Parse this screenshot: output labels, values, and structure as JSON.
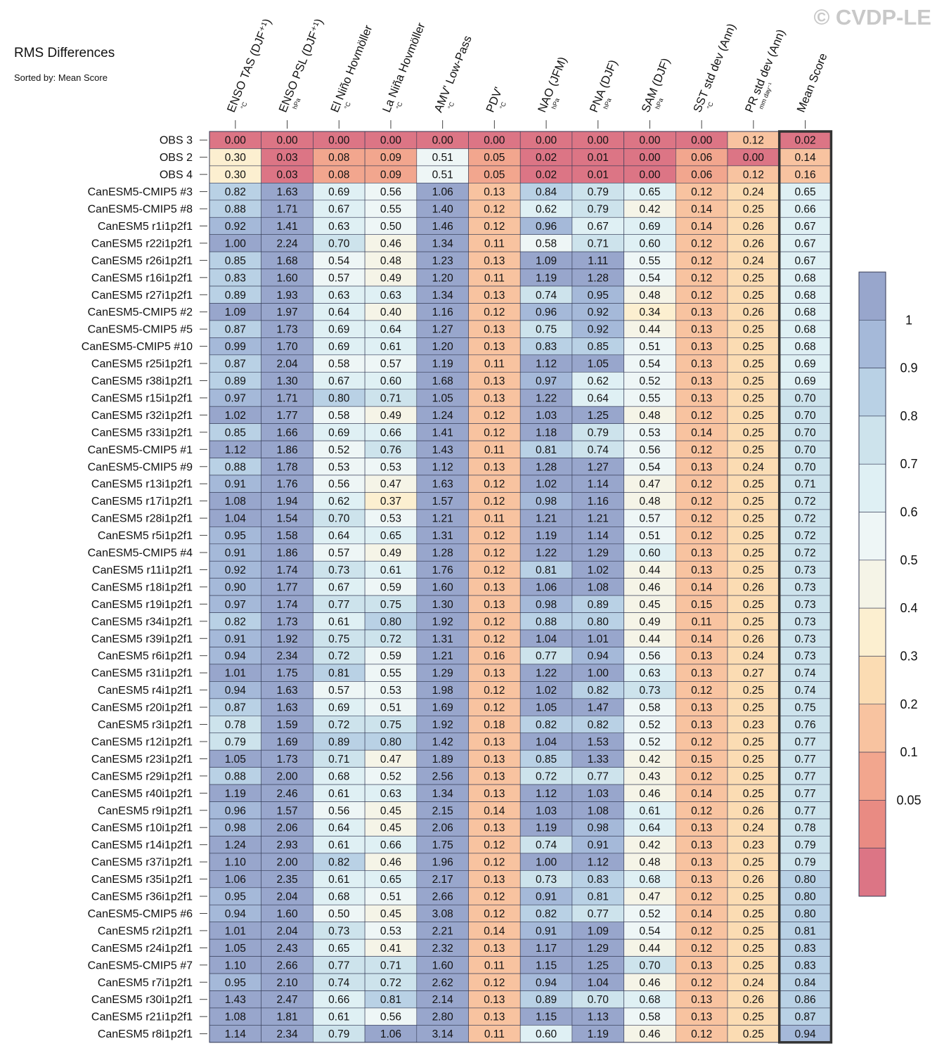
{
  "watermark": "© CVDP-LE",
  "chart_data": {
    "type": "heatmap",
    "title": "RMS Differences",
    "subtitle": "Sorted by: Mean Score",
    "columns": [
      {
        "label": "ENSO TAS (DJF⁺¹)",
        "unit": "°C"
      },
      {
        "label": "ENSO PSL (DJF⁺¹)",
        "unit": "hPa"
      },
      {
        "label": "El Niño Hovmöller",
        "unit": "°C"
      },
      {
        "label": "La Niña Hovmöller",
        "unit": "°C"
      },
      {
        "label": "AMV' Low-Pass",
        "unit": "°C"
      },
      {
        "label": "PDV'",
        "unit": "°C"
      },
      {
        "label": "NAO (JFM)",
        "unit": "hPa"
      },
      {
        "label": "PNA (DJF)",
        "unit": "hPa"
      },
      {
        "label": "SAM (DJF)",
        "unit": "hPa"
      },
      {
        "label": "SST std dev (Ann)",
        "unit": "°C"
      },
      {
        "label": "PR std dev (Ann)",
        "unit": "mm day⁻¹"
      },
      {
        "label": "Mean Score",
        "unit": ""
      }
    ],
    "rows": [
      {
        "name": "OBS 3",
        "values": [
          "0.00",
          "0.00",
          "0.00",
          "0.00",
          "0.00",
          "0.00",
          "0.00",
          "0.00",
          "0.00",
          "0.00",
          "0.12",
          "0.02"
        ]
      },
      {
        "name": "OBS 2",
        "values": [
          "0.30",
          "0.03",
          "0.08",
          "0.09",
          "0.51",
          "0.05",
          "0.02",
          "0.01",
          "0.00",
          "0.06",
          "0.00",
          "0.14"
        ]
      },
      {
        "name": "OBS 4",
        "values": [
          "0.30",
          "0.03",
          "0.08",
          "0.09",
          "0.51",
          "0.05",
          "0.02",
          "0.01",
          "0.00",
          "0.06",
          "0.12",
          "0.16"
        ]
      },
      {
        "name": "CanESM5-CMIP5 #3",
        "values": [
          "0.82",
          "1.63",
          "0.69",
          "0.56",
          "1.06",
          "0.13",
          "0.84",
          "0.79",
          "0.65",
          "0.12",
          "0.24",
          "0.65"
        ]
      },
      {
        "name": "CanESM5-CMIP5 #8",
        "values": [
          "0.88",
          "1.71",
          "0.67",
          "0.55",
          "1.40",
          "0.12",
          "0.62",
          "0.79",
          "0.42",
          "0.14",
          "0.25",
          "0.66"
        ]
      },
      {
        "name": "CanESM5 r1i1p2f1",
        "values": [
          "0.92",
          "1.41",
          "0.63",
          "0.50",
          "1.46",
          "0.12",
          "0.96",
          "0.67",
          "0.69",
          "0.14",
          "0.26",
          "0.67"
        ]
      },
      {
        "name": "CanESM5 r22i1p2f1",
        "values": [
          "1.00",
          "2.24",
          "0.70",
          "0.46",
          "1.34",
          "0.11",
          "0.58",
          "0.71",
          "0.60",
          "0.12",
          "0.26",
          "0.67"
        ]
      },
      {
        "name": "CanESM5 r26i1p2f1",
        "values": [
          "0.85",
          "1.68",
          "0.54",
          "0.48",
          "1.23",
          "0.13",
          "1.09",
          "1.11",
          "0.55",
          "0.12",
          "0.24",
          "0.67"
        ]
      },
      {
        "name": "CanESM5 r16i1p2f1",
        "values": [
          "0.83",
          "1.60",
          "0.57",
          "0.49",
          "1.20",
          "0.11",
          "1.19",
          "1.28",
          "0.54",
          "0.12",
          "0.25",
          "0.68"
        ]
      },
      {
        "name": "CanESM5 r27i1p2f1",
        "values": [
          "0.89",
          "1.93",
          "0.63",
          "0.63",
          "1.34",
          "0.13",
          "0.74",
          "0.95",
          "0.48",
          "0.12",
          "0.25",
          "0.68"
        ]
      },
      {
        "name": "CanESM5-CMIP5 #2",
        "values": [
          "1.09",
          "1.97",
          "0.64",
          "0.40",
          "1.16",
          "0.12",
          "0.96",
          "0.92",
          "0.34",
          "0.13",
          "0.26",
          "0.68"
        ]
      },
      {
        "name": "CanESM5-CMIP5 #5",
        "values": [
          "0.87",
          "1.73",
          "0.69",
          "0.64",
          "1.27",
          "0.13",
          "0.75",
          "0.92",
          "0.44",
          "0.13",
          "0.25",
          "0.68"
        ]
      },
      {
        "name": "CanESM5-CMIP5 #10",
        "values": [
          "0.99",
          "1.70",
          "0.69",
          "0.61",
          "1.20",
          "0.13",
          "0.83",
          "0.85",
          "0.51",
          "0.13",
          "0.25",
          "0.68"
        ]
      },
      {
        "name": "CanESM5 r25i1p2f1",
        "values": [
          "0.87",
          "2.04",
          "0.58",
          "0.57",
          "1.19",
          "0.11",
          "1.12",
          "1.05",
          "0.54",
          "0.13",
          "0.25",
          "0.69"
        ]
      },
      {
        "name": "CanESM5 r38i1p2f1",
        "values": [
          "0.89",
          "1.30",
          "0.67",
          "0.60",
          "1.68",
          "0.13",
          "0.97",
          "0.62",
          "0.52",
          "0.13",
          "0.25",
          "0.69"
        ]
      },
      {
        "name": "CanESM5 r15i1p2f1",
        "values": [
          "0.97",
          "1.71",
          "0.80",
          "0.71",
          "1.05",
          "0.13",
          "1.22",
          "0.64",
          "0.55",
          "0.13",
          "0.25",
          "0.70"
        ]
      },
      {
        "name": "CanESM5 r32i1p2f1",
        "values": [
          "1.02",
          "1.77",
          "0.58",
          "0.49",
          "1.24",
          "0.12",
          "1.03",
          "1.25",
          "0.48",
          "0.12",
          "0.25",
          "0.70"
        ]
      },
      {
        "name": "CanESM5 r33i1p2f1",
        "values": [
          "0.85",
          "1.66",
          "0.69",
          "0.66",
          "1.41",
          "0.12",
          "1.18",
          "0.79",
          "0.53",
          "0.14",
          "0.25",
          "0.70"
        ]
      },
      {
        "name": "CanESM5-CMIP5 #1",
        "values": [
          "1.12",
          "1.86",
          "0.52",
          "0.76",
          "1.43",
          "0.11",
          "0.81",
          "0.74",
          "0.56",
          "0.12",
          "0.25",
          "0.70"
        ]
      },
      {
        "name": "CanESM5-CMIP5 #9",
        "values": [
          "0.88",
          "1.78",
          "0.53",
          "0.53",
          "1.12",
          "0.13",
          "1.28",
          "1.27",
          "0.54",
          "0.13",
          "0.24",
          "0.70"
        ]
      },
      {
        "name": "CanESM5 r13i1p2f1",
        "values": [
          "0.91",
          "1.76",
          "0.56",
          "0.47",
          "1.63",
          "0.12",
          "1.02",
          "1.14",
          "0.47",
          "0.12",
          "0.25",
          "0.71"
        ]
      },
      {
        "name": "CanESM5 r17i1p2f1",
        "values": [
          "1.08",
          "1.94",
          "0.62",
          "0.37",
          "1.57",
          "0.12",
          "0.98",
          "1.16",
          "0.48",
          "0.12",
          "0.25",
          "0.72"
        ]
      },
      {
        "name": "CanESM5 r28i1p2f1",
        "values": [
          "1.04",
          "1.54",
          "0.70",
          "0.53",
          "1.21",
          "0.11",
          "1.21",
          "1.21",
          "0.57",
          "0.12",
          "0.25",
          "0.72"
        ]
      },
      {
        "name": "CanESM5 r5i1p2f1",
        "values": [
          "0.95",
          "1.58",
          "0.64",
          "0.65",
          "1.31",
          "0.12",
          "1.19",
          "1.14",
          "0.51",
          "0.12",
          "0.25",
          "0.72"
        ]
      },
      {
        "name": "CanESM5-CMIP5 #4",
        "values": [
          "0.91",
          "1.86",
          "0.57",
          "0.49",
          "1.28",
          "0.12",
          "1.22",
          "1.29",
          "0.60",
          "0.13",
          "0.25",
          "0.72"
        ]
      },
      {
        "name": "CanESM5 r11i1p2f1",
        "values": [
          "0.92",
          "1.74",
          "0.73",
          "0.61",
          "1.76",
          "0.12",
          "0.81",
          "1.02",
          "0.44",
          "0.13",
          "0.25",
          "0.73"
        ]
      },
      {
        "name": "CanESM5 r18i1p2f1",
        "values": [
          "0.90",
          "1.77",
          "0.67",
          "0.59",
          "1.60",
          "0.13",
          "1.06",
          "1.08",
          "0.46",
          "0.14",
          "0.26",
          "0.73"
        ]
      },
      {
        "name": "CanESM5 r19i1p2f1",
        "values": [
          "0.97",
          "1.74",
          "0.77",
          "0.75",
          "1.30",
          "0.13",
          "0.98",
          "0.89",
          "0.45",
          "0.15",
          "0.25",
          "0.73"
        ]
      },
      {
        "name": "CanESM5 r34i1p2f1",
        "values": [
          "0.82",
          "1.73",
          "0.61",
          "0.80",
          "1.92",
          "0.12",
          "0.88",
          "0.80",
          "0.49",
          "0.11",
          "0.25",
          "0.73"
        ]
      },
      {
        "name": "CanESM5 r39i1p2f1",
        "values": [
          "0.91",
          "1.92",
          "0.75",
          "0.72",
          "1.31",
          "0.12",
          "1.04",
          "1.01",
          "0.44",
          "0.14",
          "0.26",
          "0.73"
        ]
      },
      {
        "name": "CanESM5 r6i1p2f1",
        "values": [
          "0.94",
          "2.34",
          "0.72",
          "0.59",
          "1.21",
          "0.16",
          "0.77",
          "0.94",
          "0.56",
          "0.13",
          "0.24",
          "0.73"
        ]
      },
      {
        "name": "CanESM5 r31i1p2f1",
        "values": [
          "1.01",
          "1.75",
          "0.81",
          "0.55",
          "1.29",
          "0.13",
          "1.22",
          "1.00",
          "0.63",
          "0.13",
          "0.27",
          "0.74"
        ]
      },
      {
        "name": "CanESM5 r4i1p2f1",
        "values": [
          "0.94",
          "1.63",
          "0.57",
          "0.53",
          "1.98",
          "0.12",
          "1.02",
          "0.82",
          "0.73",
          "0.12",
          "0.25",
          "0.74"
        ]
      },
      {
        "name": "CanESM5 r20i1p2f1",
        "values": [
          "0.87",
          "1.63",
          "0.69",
          "0.51",
          "1.69",
          "0.12",
          "1.05",
          "1.47",
          "0.58",
          "0.13",
          "0.25",
          "0.75"
        ]
      },
      {
        "name": "CanESM5 r3i1p2f1",
        "values": [
          "0.78",
          "1.59",
          "0.72",
          "0.75",
          "1.92",
          "0.18",
          "0.82",
          "0.82",
          "0.52",
          "0.13",
          "0.23",
          "0.76"
        ]
      },
      {
        "name": "CanESM5 r12i1p2f1",
        "values": [
          "0.79",
          "1.69",
          "0.89",
          "0.80",
          "1.42",
          "0.13",
          "1.04",
          "1.53",
          "0.52",
          "0.12",
          "0.25",
          "0.77"
        ]
      },
      {
        "name": "CanESM5 r23i1p2f1",
        "values": [
          "1.05",
          "1.73",
          "0.71",
          "0.47",
          "1.89",
          "0.13",
          "0.85",
          "1.33",
          "0.42",
          "0.15",
          "0.25",
          "0.77"
        ]
      },
      {
        "name": "CanESM5 r29i1p2f1",
        "values": [
          "0.88",
          "2.00",
          "0.68",
          "0.52",
          "2.56",
          "0.13",
          "0.72",
          "0.77",
          "0.43",
          "0.12",
          "0.25",
          "0.77"
        ]
      },
      {
        "name": "CanESM5 r40i1p2f1",
        "values": [
          "1.19",
          "2.46",
          "0.61",
          "0.63",
          "1.34",
          "0.13",
          "1.12",
          "1.03",
          "0.46",
          "0.14",
          "0.25",
          "0.77"
        ]
      },
      {
        "name": "CanESM5 r9i1p2f1",
        "values": [
          "0.96",
          "1.57",
          "0.56",
          "0.45",
          "2.15",
          "0.14",
          "1.03",
          "1.08",
          "0.61",
          "0.12",
          "0.26",
          "0.77"
        ]
      },
      {
        "name": "CanESM5 r10i1p2f1",
        "values": [
          "0.98",
          "2.06",
          "0.64",
          "0.45",
          "2.06",
          "0.13",
          "1.19",
          "0.98",
          "0.64",
          "0.13",
          "0.24",
          "0.78"
        ]
      },
      {
        "name": "CanESM5 r14i1p2f1",
        "values": [
          "1.24",
          "2.93",
          "0.61",
          "0.66",
          "1.75",
          "0.12",
          "0.74",
          "0.91",
          "0.42",
          "0.13",
          "0.23",
          "0.79"
        ]
      },
      {
        "name": "CanESM5 r37i1p2f1",
        "values": [
          "1.10",
          "2.00",
          "0.82",
          "0.46",
          "1.96",
          "0.12",
          "1.00",
          "1.12",
          "0.48",
          "0.13",
          "0.25",
          "0.79"
        ]
      },
      {
        "name": "CanESM5 r35i1p2f1",
        "values": [
          "1.06",
          "2.35",
          "0.61",
          "0.65",
          "2.17",
          "0.13",
          "0.73",
          "0.83",
          "0.68",
          "0.13",
          "0.26",
          "0.80"
        ]
      },
      {
        "name": "CanESM5 r36i1p2f1",
        "values": [
          "0.95",
          "2.04",
          "0.68",
          "0.51",
          "2.66",
          "0.12",
          "0.91",
          "0.81",
          "0.47",
          "0.12",
          "0.25",
          "0.80"
        ]
      },
      {
        "name": "CanESM5-CMIP5 #6",
        "values": [
          "0.94",
          "1.60",
          "0.50",
          "0.45",
          "3.08",
          "0.12",
          "0.82",
          "0.77",
          "0.52",
          "0.14",
          "0.25",
          "0.80"
        ]
      },
      {
        "name": "CanESM5 r2i1p2f1",
        "values": [
          "1.01",
          "2.04",
          "0.73",
          "0.53",
          "2.21",
          "0.14",
          "0.91",
          "1.09",
          "0.54",
          "0.12",
          "0.25",
          "0.81"
        ]
      },
      {
        "name": "CanESM5 r24i1p2f1",
        "values": [
          "1.05",
          "2.43",
          "0.65",
          "0.41",
          "2.32",
          "0.13",
          "1.17",
          "1.29",
          "0.44",
          "0.12",
          "0.25",
          "0.83"
        ]
      },
      {
        "name": "CanESM5-CMIP5 #7",
        "values": [
          "1.10",
          "2.66",
          "0.77",
          "0.71",
          "1.60",
          "0.11",
          "1.15",
          "1.25",
          "0.70",
          "0.13",
          "0.25",
          "0.83"
        ]
      },
      {
        "name": "CanESM5 r7i1p2f1",
        "values": [
          "0.95",
          "2.10",
          "0.74",
          "0.72",
          "2.62",
          "0.12",
          "0.94",
          "1.04",
          "0.46",
          "0.12",
          "0.24",
          "0.84"
        ]
      },
      {
        "name": "CanESM5 r30i1p2f1",
        "values": [
          "1.43",
          "2.47",
          "0.66",
          "0.81",
          "2.14",
          "0.13",
          "0.89",
          "0.70",
          "0.68",
          "0.13",
          "0.26",
          "0.86"
        ]
      },
      {
        "name": "CanESM5 r21i1p2f1",
        "values": [
          "1.08",
          "1.81",
          "0.61",
          "0.56",
          "2.80",
          "0.13",
          "1.15",
          "1.13",
          "0.58",
          "0.13",
          "0.25",
          "0.87"
        ]
      },
      {
        "name": "CanESM5 r8i1p2f1",
        "values": [
          "1.14",
          "2.34",
          "0.79",
          "1.06",
          "3.14",
          "0.11",
          "0.60",
          "1.19",
          "0.46",
          "0.12",
          "0.25",
          "0.94"
        ]
      }
    ],
    "colorbar": {
      "tick_labels": [
        "1",
        "0.9",
        "0.8",
        "0.7",
        "0.6",
        "0.5",
        "0.4",
        "0.3",
        "0.2",
        "0.1",
        "0.05"
      ],
      "levels_top_to_bottom": [
        1.0,
        0.9,
        0.8,
        0.7,
        0.6,
        0.5,
        0.4,
        0.3,
        0.2,
        0.1,
        0.05
      ],
      "colors_top_to_bottom": [
        "#98a6cc",
        "#a5b9d9",
        "#b9d1e5",
        "#cde3ec",
        "#dff0f4",
        "#eef6f6",
        "#f5f4e7",
        "#fcefd0",
        "#fbdcb3",
        "#f8c3a0",
        "#f2a68e",
        "#e98b83",
        "#dc7585"
      ]
    }
  }
}
